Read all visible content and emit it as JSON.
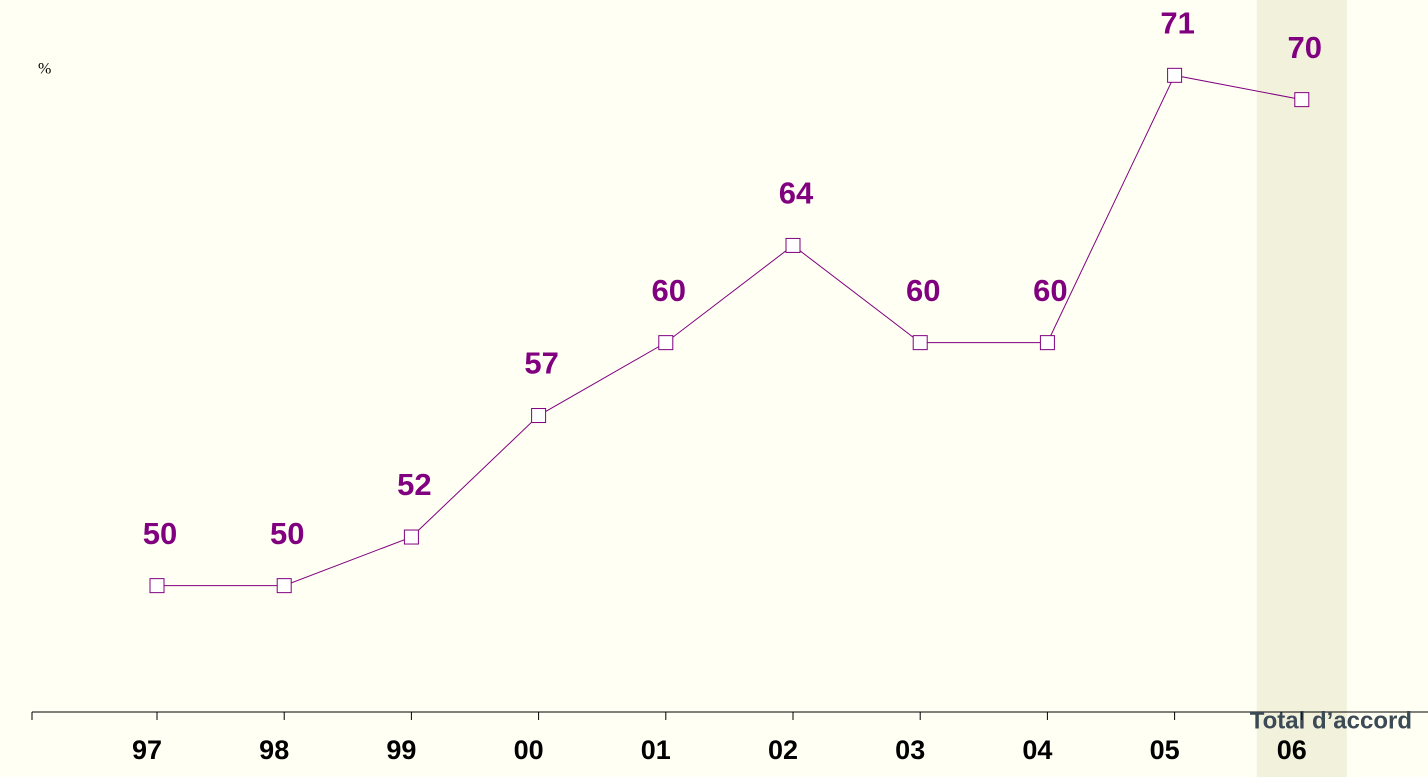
{
  "chart_data": {
    "type": "line",
    "y_label": "%",
    "annotation": "Total d’accord",
    "categories": [
      "97",
      "98",
      "99",
      "00",
      "01",
      "02",
      "03",
      "04",
      "05",
      "06"
    ],
    "series": [
      {
        "name": "Total d’accord",
        "color": "#800080",
        "values": [
          50,
          50,
          52,
          57,
          60,
          64,
          60,
          60,
          71,
          70
        ]
      }
    ],
    "ylim": [
      44.8,
      74.1
    ],
    "highlight": "06",
    "highlight_color": "#f2f2dc",
    "background": "#fffff3"
  }
}
